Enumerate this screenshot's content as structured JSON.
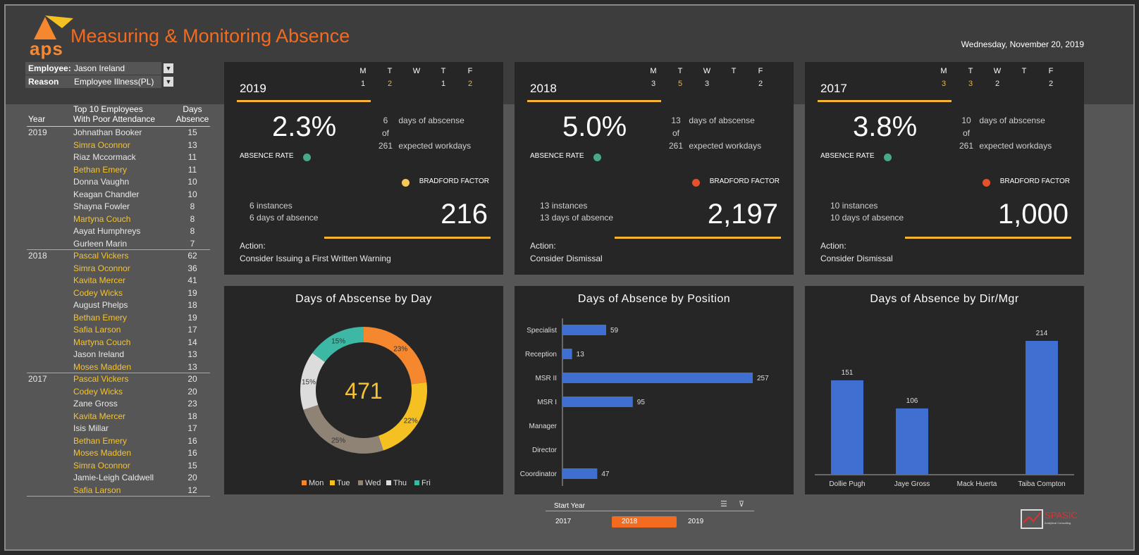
{
  "header": {
    "logo_text": "aps",
    "title": "Measuring & Monitoring Absence",
    "date": "Wednesday, November 20, 2019"
  },
  "filters": {
    "employee_label": "Employee:",
    "employee_value": "Jason Ireland",
    "reason_label": "Reason",
    "reason_value": "Employee Illness(PL)",
    "filter_icon": "filter-icon"
  },
  "top_employees": {
    "header_year": "Year",
    "header_name_line1": "Top 10 Employees",
    "header_name_line2": "With Poor Attendance",
    "header_days_line1": "Days",
    "header_days_line2": "Absence",
    "groups": [
      {
        "year": "2019",
        "rows": [
          {
            "name": "Johnathan Booker",
            "days": "15",
            "hl": false
          },
          {
            "name": "Simra Oconnor",
            "days": "13",
            "hl": true
          },
          {
            "name": "Riaz Mccormack",
            "days": "11",
            "hl": false
          },
          {
            "name": "Bethan Emery",
            "days": "11",
            "hl": true
          },
          {
            "name": "Donna Vaughn",
            "days": "10",
            "hl": false
          },
          {
            "name": "Keagan Chandler",
            "days": "10",
            "hl": false
          },
          {
            "name": "Shayna Fowler",
            "days": "8",
            "hl": false
          },
          {
            "name": "Martyna Couch",
            "days": "8",
            "hl": true
          },
          {
            "name": "Aayat Humphreys",
            "days": "8",
            "hl": false
          },
          {
            "name": "Gurleen Marin",
            "days": "7",
            "hl": false
          }
        ]
      },
      {
        "year": "2018",
        "rows": [
          {
            "name": "Pascal Vickers",
            "days": "62",
            "hl": true
          },
          {
            "name": "Simra Oconnor",
            "days": "36",
            "hl": true
          },
          {
            "name": "Kavita Mercer",
            "days": "41",
            "hl": true
          },
          {
            "name": "Codey Wicks",
            "days": "19",
            "hl": true
          },
          {
            "name": "August Phelps",
            "days": "18",
            "hl": false
          },
          {
            "name": "Bethan Emery",
            "days": "19",
            "hl": true
          },
          {
            "name": "Safia Larson",
            "days": "17",
            "hl": true
          },
          {
            "name": "Martyna Couch",
            "days": "14",
            "hl": true
          },
          {
            "name": "Jason Ireland",
            "days": "13",
            "hl": false
          },
          {
            "name": "Moses Madden",
            "days": "13",
            "hl": true
          }
        ]
      },
      {
        "year": "2017",
        "rows": [
          {
            "name": "Pascal Vickers",
            "days": "20",
            "hl": true
          },
          {
            "name": "Codey Wicks",
            "days": "20",
            "hl": true
          },
          {
            "name": "Zane Gross",
            "days": "23",
            "hl": false
          },
          {
            "name": "Kavita Mercer",
            "days": "18",
            "hl": true
          },
          {
            "name": "Isis Millar",
            "days": "17",
            "hl": false
          },
          {
            "name": "Bethan Emery",
            "days": "16",
            "hl": true
          },
          {
            "name": "Moses Madden",
            "days": "16",
            "hl": true
          },
          {
            "name": "Simra Oconnor",
            "days": "15",
            "hl": true
          },
          {
            "name": "Jamie-Leigh Caldwell",
            "days": "20",
            "hl": false
          },
          {
            "name": "Safia Larson",
            "days": "12",
            "hl": true
          }
        ]
      }
    ]
  },
  "kpis": [
    {
      "year": "2019",
      "days": [
        {
          "name": "M",
          "value": "1",
          "orange": false
        },
        {
          "name": "T",
          "value": "2",
          "orange": true
        },
        {
          "name": "W",
          "value": "",
          "orange": false
        },
        {
          "name": "T",
          "value": "1",
          "orange": false
        },
        {
          "name": "F",
          "value": "2",
          "orange": true
        }
      ],
      "rate": "2.3%",
      "rate_label": "ABSENCE RATE",
      "rate_dot_color": "#4aa88a",
      "absence_days": "6",
      "of_label": "of",
      "workdays": "261",
      "absence_days_label": "days of abscense",
      "workdays_label": "expected workdays",
      "bf_label": "BRADFORD FACTOR",
      "bf_dot_color": "#f5c85a",
      "instances": "6",
      "instances_label": "instances",
      "days_absence": "6",
      "days_absence_label": "days of absence",
      "bradford": "216",
      "action_label": "Action:",
      "action": "Consider Issuing a First Written Warning"
    },
    {
      "year": "2018",
      "days": [
        {
          "name": "M",
          "value": "3",
          "orange": false
        },
        {
          "name": "T",
          "value": "5",
          "orange": true
        },
        {
          "name": "W",
          "value": "3",
          "orange": false
        },
        {
          "name": "T",
          "value": "",
          "orange": false
        },
        {
          "name": "F",
          "value": "2",
          "orange": false
        }
      ],
      "rate": "5.0%",
      "rate_label": "ABSENCE RATE",
      "rate_dot_color": "#4aa88a",
      "absence_days": "13",
      "of_label": "of",
      "workdays": "261",
      "absence_days_label": "days of abscense",
      "workdays_label": "expected workdays",
      "bf_label": "BRADFORD FACTOR",
      "bf_dot_color": "#e8502c",
      "instances": "13",
      "instances_label": "instances",
      "days_absence": "13",
      "days_absence_label": "days of absence",
      "bradford": "2,197",
      "action_label": "Action:",
      "action": "Consider Dismissal"
    },
    {
      "year": "2017",
      "days": [
        {
          "name": "M",
          "value": "3",
          "orange": true
        },
        {
          "name": "T",
          "value": "3",
          "orange": true
        },
        {
          "name": "W",
          "value": "2",
          "orange": false
        },
        {
          "name": "T",
          "value": "",
          "orange": false
        },
        {
          "name": "F",
          "value": "2",
          "orange": false
        }
      ],
      "rate": "3.8%",
      "rate_label": "ABSENCE RATE",
      "rate_dot_color": "#4aa88a",
      "absence_days": "10",
      "of_label": "of",
      "workdays": "261",
      "absence_days_label": "days of abscense",
      "workdays_label": "expected workdays",
      "bf_label": "BRADFORD FACTOR",
      "bf_dot_color": "#e8502c",
      "instances": "10",
      "instances_label": "instances",
      "days_absence": "10",
      "days_absence_label": "days of absence",
      "bradford": "1,000",
      "action_label": "Action:",
      "action": "Consider Dismissal"
    }
  ],
  "chart_data": [
    {
      "type": "donut",
      "title": "Days of Abscense by Day",
      "center_value": "471",
      "categories": [
        "Mon",
        "Tue",
        "Wed",
        "Thu",
        "Fri"
      ],
      "values": [
        23,
        22,
        25,
        15,
        15
      ],
      "value_labels": [
        "23%",
        "22%",
        "25%",
        "15%",
        "15%"
      ],
      "colors": [
        "#f5872e",
        "#f5c022",
        "#8f8375",
        "#dcdcdc",
        "#3db8a4"
      ]
    },
    {
      "type": "bar",
      "orientation": "horizontal",
      "title": "Days of Absence by Position",
      "categories": [
        "Specialist",
        "Reception",
        "MSR II",
        "MSR I",
        "Manager",
        "Director",
        "Coordinator"
      ],
      "values": [
        59,
        13,
        257,
        95,
        null,
        null,
        47
      ],
      "color": "#3f6fd1"
    },
    {
      "type": "bar",
      "title": "Days of Absence by Dir/Mgr",
      "categories": [
        "Dollie Pugh",
        "Jaye Gross",
        "Mack Huerta",
        "Taiba Compton"
      ],
      "values": [
        151,
        106,
        null,
        214
      ],
      "color": "#3f6fd1"
    }
  ],
  "slicer": {
    "title": "Start Year",
    "options": [
      "2017",
      "2018",
      "2019"
    ],
    "selected": "2018",
    "icons": [
      "multi-select-icon",
      "clear-filter-icon"
    ]
  },
  "brand": {
    "name": "SPASIC",
    "tagline": "Analytical Consulting"
  }
}
